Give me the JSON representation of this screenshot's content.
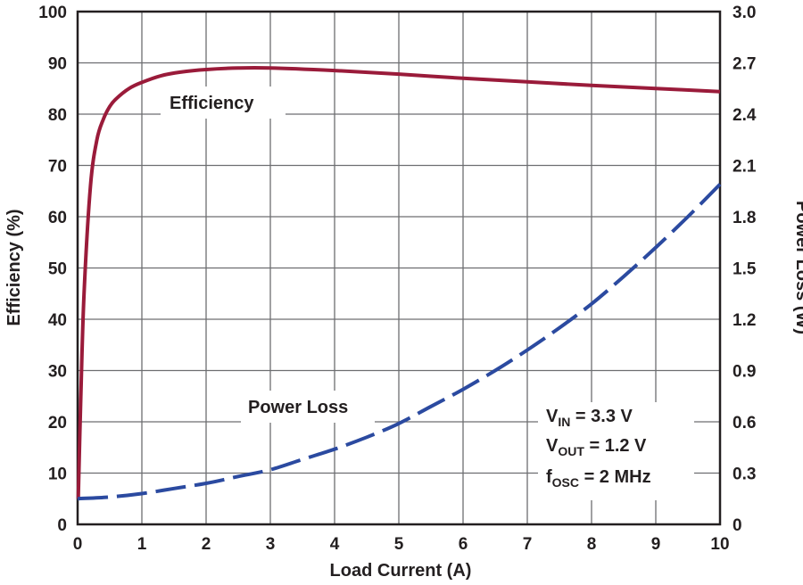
{
  "chart_data": {
    "type": "line",
    "xlabel": "Load Current (A)",
    "ylabel_left": "Efficiency (%)",
    "ylabel_right": "Power Loss (W)",
    "xlim": [
      0,
      10
    ],
    "ylim_left": [
      0,
      100
    ],
    "ylim_right": [
      0,
      3.0
    ],
    "x_ticks": [
      "0",
      "1",
      "2",
      "3",
      "4",
      "5",
      "6",
      "7",
      "8",
      "9",
      "10"
    ],
    "y_left_ticks": [
      "0",
      "10",
      "20",
      "30",
      "40",
      "50",
      "60",
      "70",
      "80",
      "90",
      "100"
    ],
    "y_right_ticks": [
      "0",
      "0.3",
      "0.6",
      "0.9",
      "1.2",
      "1.5",
      "1.8",
      "2.1",
      "2.4",
      "2.7",
      "3.0"
    ],
    "grid": true,
    "series": [
      {
        "name": "Efficiency",
        "axis": "left",
        "color": "#9a1b3a",
        "style": "solid",
        "x": [
          0.01,
          0.05,
          0.1,
          0.2,
          0.3,
          0.4,
          0.5,
          0.6,
          0.8,
          1.0,
          1.3,
          1.6,
          2.0,
          2.5,
          3.0,
          4.0,
          5.0,
          6.0,
          7.0,
          8.0,
          9.0,
          10.0
        ],
        "y": [
          5,
          25,
          45,
          66,
          75,
          79,
          81.5,
          83,
          85,
          86.2,
          87.5,
          88.2,
          88.7,
          89,
          89,
          88.5,
          87.8,
          87,
          86.3,
          85.6,
          85,
          84.4
        ]
      },
      {
        "name": "Power Loss",
        "axis": "right",
        "color": "#2b4aa0",
        "style": "dashed",
        "x": [
          0,
          0.5,
          1,
          1.5,
          2,
          2.5,
          3,
          3.5,
          4,
          4.5,
          5,
          5.5,
          6,
          6.5,
          7,
          7.5,
          8,
          8.5,
          9,
          9.5,
          10
        ],
        "y": [
          0.15,
          0.16,
          0.18,
          0.21,
          0.24,
          0.28,
          0.32,
          0.38,
          0.44,
          0.51,
          0.59,
          0.69,
          0.79,
          0.9,
          1.02,
          1.15,
          1.29,
          1.45,
          1.62,
          1.8,
          1.99
        ]
      }
    ],
    "annotations": {
      "efficiency_label": "Efficiency",
      "power_loss_label": "Power Loss"
    },
    "conditions": {
      "vin_main": "V",
      "vin_sub": "IN",
      "vin_value": " = 3.3 V",
      "vout_main": "V",
      "vout_sub": "OUT",
      "vout_value": " = 1.2 V",
      "fosc_main": "f",
      "fosc_sub": "OSC",
      "fosc_value": " = 2 MHz"
    }
  }
}
